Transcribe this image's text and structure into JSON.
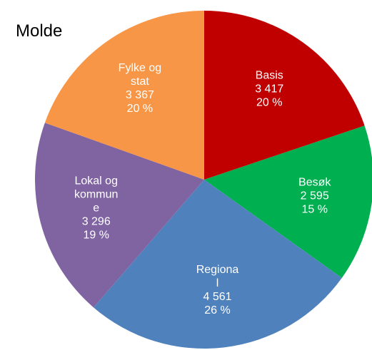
{
  "chart_data": {
    "type": "pie",
    "title": "Molde",
    "categories": [
      "Basis",
      "Besøk",
      "Regional",
      "Lokal og kommune",
      "Fylke og stat"
    ],
    "values": [
      3417,
      2595,
      4561,
      3296,
      3367
    ],
    "value_labels": [
      "3 417",
      "2 595",
      "4 561",
      "3 296",
      "3 367"
    ],
    "percent_labels": [
      "20 %",
      "15 %",
      "26 %",
      "19 %",
      "20 %"
    ],
    "colors": [
      "#c00000",
      "#00b050",
      "#4f81bd",
      "#8064a2",
      "#f79646"
    ]
  }
}
